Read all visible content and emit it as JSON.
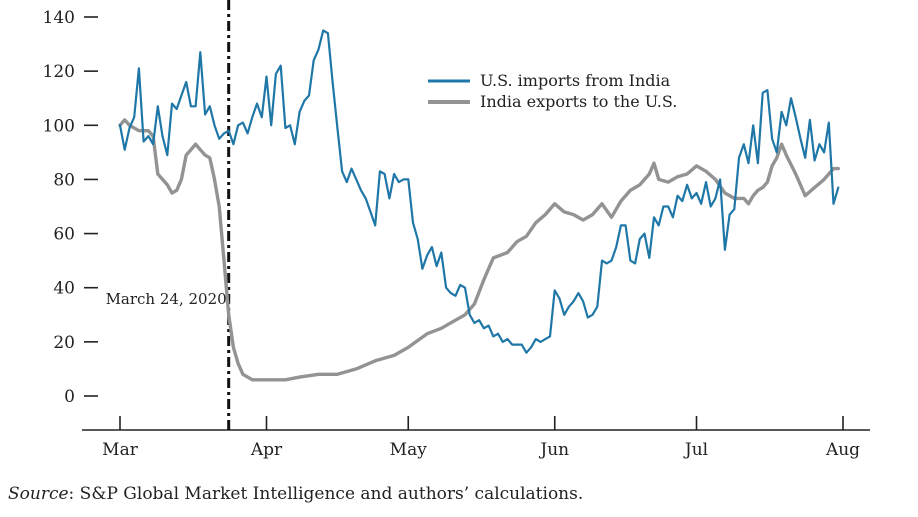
{
  "chart_data": {
    "type": "line",
    "title": "",
    "xlabel": "",
    "ylabel": "",
    "ylim": [
      0,
      140
    ],
    "yticks": [
      0,
      20,
      40,
      60,
      80,
      100,
      120,
      140
    ],
    "xlim": [
      "2020-03-01",
      "2020-08-01"
    ],
    "xticks": [
      {
        "date": "2020-03-01",
        "label": "Mar"
      },
      {
        "date": "2020-04-01",
        "label": "Apr"
      },
      {
        "date": "2020-05-01",
        "label": "May"
      },
      {
        "date": "2020-06-01",
        "label": "Jun"
      },
      {
        "date": "2020-07-01",
        "label": "Jul"
      },
      {
        "date": "2020-08-01",
        "label": "Aug"
      }
    ],
    "grid": false,
    "legend_position": "top-right",
    "annotation": {
      "date": "2020-03-24",
      "label": "March 24, 2020",
      "style": "dash-dot vertical line"
    },
    "series": [
      {
        "name": "U.S. imports from India",
        "color": "#1f77a8",
        "points": [
          [
            "2020-03-01",
            100
          ],
          [
            "2020-03-02",
            91
          ],
          [
            "2020-03-03",
            99
          ],
          [
            "2020-03-04",
            103
          ],
          [
            "2020-03-05",
            121
          ],
          [
            "2020-03-06",
            94
          ],
          [
            "2020-03-07",
            96
          ],
          [
            "2020-03-08",
            93
          ],
          [
            "2020-03-09",
            107
          ],
          [
            "2020-03-10",
            96
          ],
          [
            "2020-03-11",
            89
          ],
          [
            "2020-03-12",
            108
          ],
          [
            "2020-03-13",
            106
          ],
          [
            "2020-03-14",
            111
          ],
          [
            "2020-03-15",
            116
          ],
          [
            "2020-03-16",
            107
          ],
          [
            "2020-03-17",
            107
          ],
          [
            "2020-03-18",
            127
          ],
          [
            "2020-03-19",
            104
          ],
          [
            "2020-03-20",
            107
          ],
          [
            "2020-03-21",
            100
          ],
          [
            "2020-03-22",
            95
          ],
          [
            "2020-03-23",
            97
          ],
          [
            "2020-03-24",
            98
          ],
          [
            "2020-03-25",
            93
          ],
          [
            "2020-03-26",
            100
          ],
          [
            "2020-03-27",
            101
          ],
          [
            "2020-03-28",
            97
          ],
          [
            "2020-03-29",
            103
          ],
          [
            "2020-03-30",
            108
          ],
          [
            "2020-03-31",
            103
          ],
          [
            "2020-04-01",
            118
          ],
          [
            "2020-04-02",
            100
          ],
          [
            "2020-04-03",
            119
          ],
          [
            "2020-04-04",
            122
          ],
          [
            "2020-04-05",
            99
          ],
          [
            "2020-04-06",
            100
          ],
          [
            "2020-04-07",
            93
          ],
          [
            "2020-04-08",
            105
          ],
          [
            "2020-04-09",
            109
          ],
          [
            "2020-04-10",
            111
          ],
          [
            "2020-04-11",
            124
          ],
          [
            "2020-04-12",
            128
          ],
          [
            "2020-04-13",
            135
          ],
          [
            "2020-04-14",
            134
          ],
          [
            "2020-04-15",
            116
          ],
          [
            "2020-04-16",
            99
          ],
          [
            "2020-04-17",
            83
          ],
          [
            "2020-04-18",
            79
          ],
          [
            "2020-04-19",
            84
          ],
          [
            "2020-04-20",
            80
          ],
          [
            "2020-04-21",
            76
          ],
          [
            "2020-04-22",
            73
          ],
          [
            "2020-04-23",
            68
          ],
          [
            "2020-04-24",
            63
          ],
          [
            "2020-04-25",
            83
          ],
          [
            "2020-04-26",
            82
          ],
          [
            "2020-04-27",
            73
          ],
          [
            "2020-04-28",
            82
          ],
          [
            "2020-04-29",
            79
          ],
          [
            "2020-04-30",
            80
          ],
          [
            "2020-05-01",
            80
          ],
          [
            "2020-05-02",
            64
          ],
          [
            "2020-05-03",
            58
          ],
          [
            "2020-05-04",
            47
          ],
          [
            "2020-05-05",
            52
          ],
          [
            "2020-05-06",
            55
          ],
          [
            "2020-05-07",
            48
          ],
          [
            "2020-05-08",
            53
          ],
          [
            "2020-05-09",
            40
          ],
          [
            "2020-05-10",
            38
          ],
          [
            "2020-05-11",
            37
          ],
          [
            "2020-05-12",
            41
          ],
          [
            "2020-05-13",
            40
          ],
          [
            "2020-05-14",
            30
          ],
          [
            "2020-05-15",
            27
          ],
          [
            "2020-05-16",
            28
          ],
          [
            "2020-05-17",
            25
          ],
          [
            "2020-05-18",
            26
          ],
          [
            "2020-05-19",
            22
          ],
          [
            "2020-05-20",
            23
          ],
          [
            "2020-05-21",
            20
          ],
          [
            "2020-05-22",
            21
          ],
          [
            "2020-05-23",
            19
          ],
          [
            "2020-05-24",
            19
          ],
          [
            "2020-05-25",
            19
          ],
          [
            "2020-05-26",
            16
          ],
          [
            "2020-05-27",
            18
          ],
          [
            "2020-05-28",
            21
          ],
          [
            "2020-05-29",
            20
          ],
          [
            "2020-05-30",
            21
          ],
          [
            "2020-05-31",
            22
          ],
          [
            "2020-06-01",
            39
          ],
          [
            "2020-06-02",
            36
          ],
          [
            "2020-06-03",
            30
          ],
          [
            "2020-06-04",
            33
          ],
          [
            "2020-06-05",
            35
          ],
          [
            "2020-06-06",
            38
          ],
          [
            "2020-06-07",
            35
          ],
          [
            "2020-06-08",
            29
          ],
          [
            "2020-06-09",
            30
          ],
          [
            "2020-06-10",
            33
          ],
          [
            "2020-06-11",
            50
          ],
          [
            "2020-06-12",
            49
          ],
          [
            "2020-06-13",
            50
          ],
          [
            "2020-06-14",
            55
          ],
          [
            "2020-06-15",
            63
          ],
          [
            "2020-06-16",
            63
          ],
          [
            "2020-06-17",
            50
          ],
          [
            "2020-06-18",
            49
          ],
          [
            "2020-06-19",
            58
          ],
          [
            "2020-06-20",
            60
          ],
          [
            "2020-06-21",
            51
          ],
          [
            "2020-06-22",
            66
          ],
          [
            "2020-06-23",
            63
          ],
          [
            "2020-06-24",
            70
          ],
          [
            "2020-06-25",
            70
          ],
          [
            "2020-06-26",
            66
          ],
          [
            "2020-06-27",
            74
          ],
          [
            "2020-06-28",
            72
          ],
          [
            "2020-06-29",
            78
          ],
          [
            "2020-06-30",
            73
          ],
          [
            "2020-07-01",
            75
          ],
          [
            "2020-07-02",
            71
          ],
          [
            "2020-07-03",
            79
          ],
          [
            "2020-07-04",
            70
          ],
          [
            "2020-07-05",
            73
          ],
          [
            "2020-07-06",
            80
          ],
          [
            "2020-07-07",
            54
          ],
          [
            "2020-07-08",
            67
          ],
          [
            "2020-07-09",
            69
          ],
          [
            "2020-07-10",
            88
          ],
          [
            "2020-07-11",
            93
          ],
          [
            "2020-07-12",
            86
          ],
          [
            "2020-07-13",
            100
          ],
          [
            "2020-07-14",
            86
          ],
          [
            "2020-07-15",
            112
          ],
          [
            "2020-07-16",
            113
          ],
          [
            "2020-07-17",
            95
          ],
          [
            "2020-07-18",
            90
          ],
          [
            "2020-07-19",
            105
          ],
          [
            "2020-07-20",
            100
          ],
          [
            "2020-07-21",
            110
          ],
          [
            "2020-07-22",
            103
          ],
          [
            "2020-07-23",
            95
          ],
          [
            "2020-07-24",
            88
          ],
          [
            "2020-07-25",
            102
          ],
          [
            "2020-07-26",
            87
          ],
          [
            "2020-07-27",
            93
          ],
          [
            "2020-07-28",
            90
          ],
          [
            "2020-07-29",
            101
          ],
          [
            "2020-07-30",
            71
          ],
          [
            "2020-07-31",
            77
          ]
        ]
      },
      {
        "name": "India exports to the U.S.",
        "color": "#939393",
        "points": [
          [
            "2020-03-01",
            100
          ],
          [
            "2020-03-02",
            102
          ],
          [
            "2020-03-03",
            100
          ],
          [
            "2020-03-05",
            98
          ],
          [
            "2020-03-07",
            98
          ],
          [
            "2020-03-08",
            96
          ],
          [
            "2020-03-09",
            82
          ],
          [
            "2020-03-11",
            78
          ],
          [
            "2020-03-12",
            75
          ],
          [
            "2020-03-13",
            76
          ],
          [
            "2020-03-14",
            80
          ],
          [
            "2020-03-15",
            89
          ],
          [
            "2020-03-16",
            91
          ],
          [
            "2020-03-17",
            93
          ],
          [
            "2020-03-18",
            91
          ],
          [
            "2020-03-19",
            89
          ],
          [
            "2020-03-20",
            88
          ],
          [
            "2020-03-21",
            80
          ],
          [
            "2020-03-22",
            70
          ],
          [
            "2020-03-23",
            50
          ],
          [
            "2020-03-24",
            30
          ],
          [
            "2020-03-25",
            18
          ],
          [
            "2020-03-26",
            12
          ],
          [
            "2020-03-27",
            8
          ],
          [
            "2020-03-28",
            7
          ],
          [
            "2020-03-29",
            6
          ],
          [
            "2020-04-01",
            6
          ],
          [
            "2020-04-05",
            6
          ],
          [
            "2020-04-08",
            7
          ],
          [
            "2020-04-12",
            8
          ],
          [
            "2020-04-16",
            8
          ],
          [
            "2020-04-20",
            10
          ],
          [
            "2020-04-24",
            13
          ],
          [
            "2020-04-28",
            15
          ],
          [
            "2020-05-01",
            18
          ],
          [
            "2020-05-05",
            23
          ],
          [
            "2020-05-08",
            25
          ],
          [
            "2020-05-11",
            28
          ],
          [
            "2020-05-13",
            30
          ],
          [
            "2020-05-15",
            34
          ],
          [
            "2020-05-17",
            43
          ],
          [
            "2020-05-19",
            51
          ],
          [
            "2020-05-22",
            53
          ],
          [
            "2020-05-24",
            57
          ],
          [
            "2020-05-26",
            59
          ],
          [
            "2020-05-28",
            64
          ],
          [
            "2020-05-30",
            67
          ],
          [
            "2020-06-01",
            71
          ],
          [
            "2020-06-03",
            68
          ],
          [
            "2020-06-05",
            67
          ],
          [
            "2020-06-07",
            65
          ],
          [
            "2020-06-09",
            67
          ],
          [
            "2020-06-11",
            71
          ],
          [
            "2020-06-13",
            66
          ],
          [
            "2020-06-15",
            72
          ],
          [
            "2020-06-17",
            76
          ],
          [
            "2020-06-19",
            78
          ],
          [
            "2020-06-21",
            82
          ],
          [
            "2020-06-22",
            86
          ],
          [
            "2020-06-23",
            80
          ],
          [
            "2020-06-25",
            79
          ],
          [
            "2020-06-27",
            81
          ],
          [
            "2020-06-29",
            82
          ],
          [
            "2020-07-01",
            85
          ],
          [
            "2020-07-03",
            83
          ],
          [
            "2020-07-05",
            80
          ],
          [
            "2020-07-07",
            75
          ],
          [
            "2020-07-09",
            73
          ],
          [
            "2020-07-11",
            73
          ],
          [
            "2020-07-12",
            71
          ],
          [
            "2020-07-13",
            74
          ],
          [
            "2020-07-14",
            76
          ],
          [
            "2020-07-15",
            77
          ],
          [
            "2020-07-16",
            79
          ],
          [
            "2020-07-17",
            85
          ],
          [
            "2020-07-18",
            88
          ],
          [
            "2020-07-19",
            93
          ],
          [
            "2020-07-20",
            89
          ],
          [
            "2020-07-22",
            82
          ],
          [
            "2020-07-24",
            74
          ],
          [
            "2020-07-26",
            77
          ],
          [
            "2020-07-28",
            80
          ],
          [
            "2020-07-30",
            84
          ],
          [
            "2020-07-31",
            84
          ]
        ]
      }
    ]
  },
  "source": {
    "prefix": "Source",
    "text": ": S&P Global Market Intelligence and authors’ calculations."
  }
}
